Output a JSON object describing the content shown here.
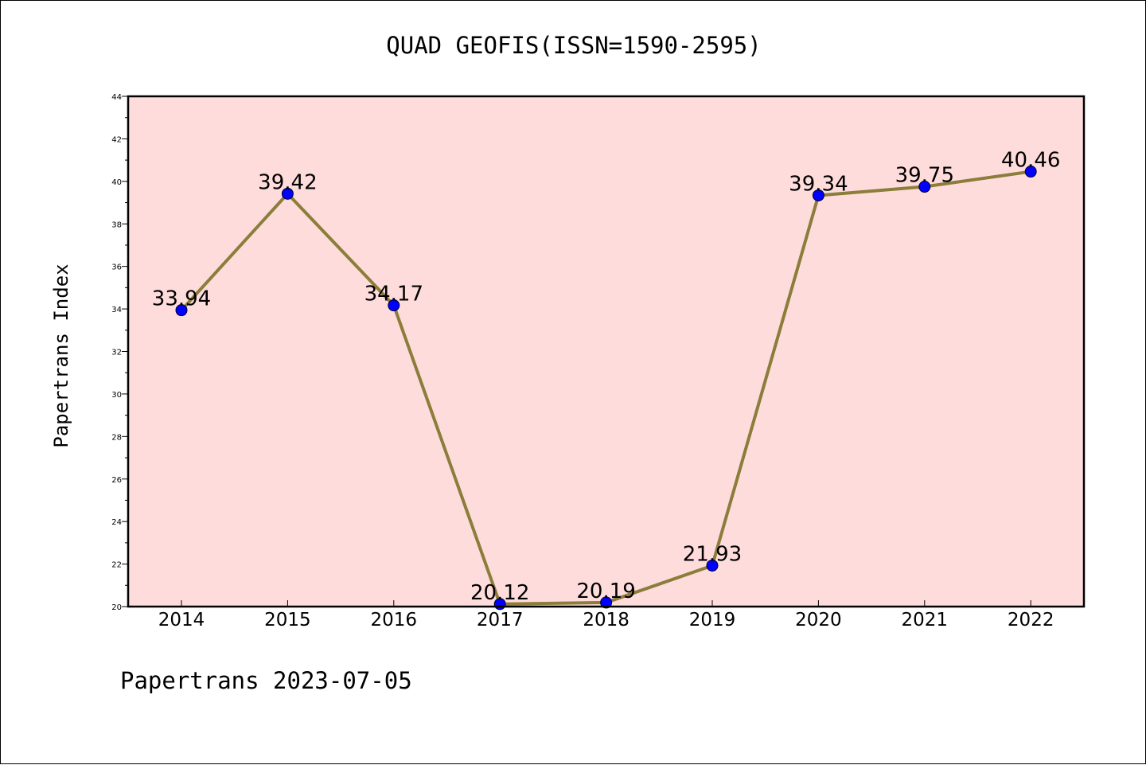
{
  "chart_data": {
    "type": "line",
    "title": "QUAD GEOFIS(ISSN=1590-2595)",
    "ylabel": "Papertrans Index",
    "xlabel": "",
    "footer": "Papertrans 2023-07-05",
    "categories": [
      "2014",
      "2015",
      "2016",
      "2017",
      "2018",
      "2019",
      "2020",
      "2021",
      "2022"
    ],
    "series": [
      {
        "values": [
          33.94,
          39.42,
          34.17,
          20.12,
          20.19,
          21.93,
          39.34,
          39.75,
          40.46
        ],
        "labels": [
          "33.94",
          "39.42",
          "34.17",
          "20.12",
          "20.19",
          "21.93",
          "39.34",
          "39.75",
          "40.46"
        ]
      }
    ],
    "ylim": [
      20,
      44
    ],
    "yticks": [
      20,
      22,
      24,
      26,
      28,
      30,
      32,
      34,
      36,
      38,
      40,
      42,
      44
    ],
    "ytick_labels": [
      "20",
      "22",
      "24",
      "26",
      "28",
      "30",
      "32",
      "34",
      "36",
      "38",
      "40",
      "42",
      "44"
    ],
    "grid": false,
    "legend": "none",
    "colors": {
      "plot_background": "#ffdcdc",
      "line": "#8b7d3a",
      "marker": "#0000ff",
      "axis": "#000000"
    }
  }
}
